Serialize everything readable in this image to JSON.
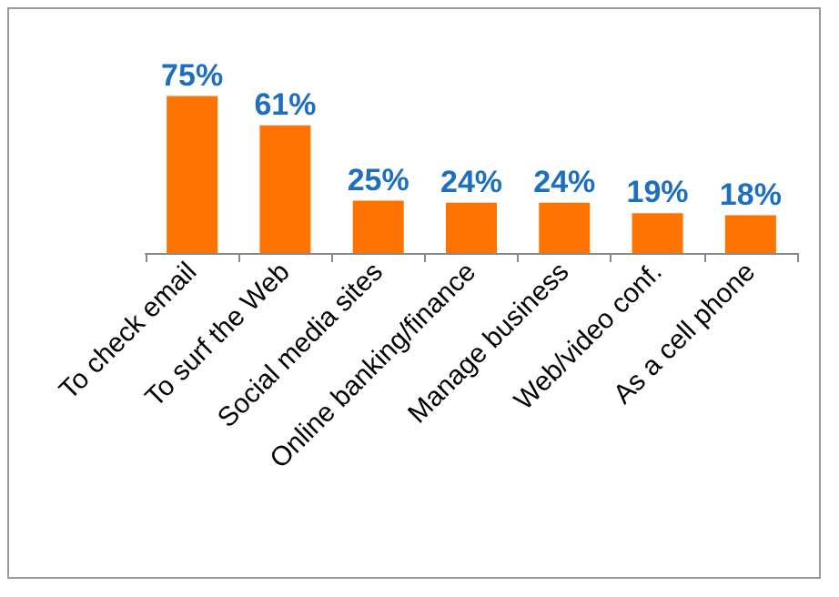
{
  "chart_data": {
    "type": "bar",
    "categories": [
      "To check email",
      "To surf the Web",
      "Social media sites",
      "Online banking/finance",
      "Manage business",
      "Web/video conf.",
      "As a cell phone"
    ],
    "values": [
      75,
      61,
      25,
      24,
      24,
      19,
      18
    ],
    "value_labels": [
      "75%",
      "61%",
      "25%",
      "24%",
      "24%",
      "19%",
      "18%"
    ],
    "color": "#ff7300"
  }
}
